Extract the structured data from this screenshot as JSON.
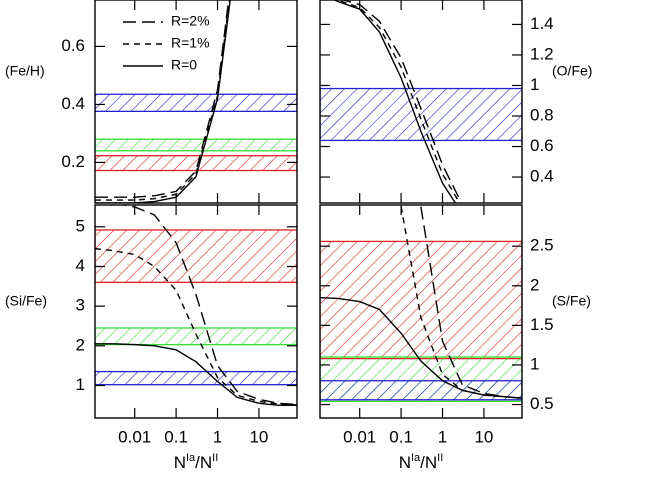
{
  "chart_data": [
    {
      "type": "line",
      "ylabel": "(Fe/H)",
      "yaxis_side": "left",
      "log_x": true,
      "xlim": [
        0.0011,
        83
      ],
      "xticks": [
        0.01,
        0.1,
        1,
        10
      ],
      "ylim": [
        0.06,
        0.76
      ],
      "yticks": [
        0.2,
        0.4,
        0.6
      ],
      "x": [
        0.0011,
        0.003,
        0.01,
        0.03,
        0.1,
        0.3,
        1,
        3,
        10,
        30,
        83
      ],
      "legend": "upper left",
      "series": [
        {
          "name": "R=2%",
          "dash": "long",
          "color": "#000000",
          "values": [
            0.08,
            0.08,
            0.08,
            0.085,
            0.1,
            0.17,
            0.45,
            1.0,
            null,
            null,
            null
          ]
        },
        {
          "name": "R=1%",
          "dash": "short",
          "color": "#000000",
          "values": [
            0.07,
            0.07,
            0.07,
            0.075,
            0.09,
            0.16,
            0.43,
            0.98,
            null,
            null,
            null
          ]
        },
        {
          "name": "R=0",
          "dash": "solid",
          "color": "#000000",
          "values": [
            0.06,
            0.06,
            0.06,
            0.065,
            0.08,
            0.15,
            0.42,
            0.95,
            null,
            null,
            null
          ]
        }
      ],
      "bands": [
        {
          "color": "#2222cc",
          "range": [
            0.376,
            0.435
          ]
        },
        {
          "color": "#33dd33",
          "range": [
            0.24,
            0.28
          ]
        },
        {
          "color": "#dd2222",
          "range": [
            0.172,
            0.223
          ]
        }
      ]
    },
    {
      "type": "line",
      "ylabel": "(O/Fe)",
      "yaxis_side": "right",
      "log_x": true,
      "xlim": [
        0.0011,
        83
      ],
      "xticks": [
        0.01,
        0.1,
        1,
        10
      ],
      "ylim": [
        0.23,
        1.56
      ],
      "yticks": [
        0.4,
        0.6,
        0.8,
        1,
        1.2,
        1.4
      ],
      "x": [
        0.0011,
        0.003,
        0.01,
        0.03,
        0.1,
        0.3,
        1,
        3,
        10,
        30,
        83
      ],
      "series": [
        {
          "dash": "long",
          "color": "#000000",
          "values": [
            1.6,
            1.57,
            1.53,
            1.42,
            1.18,
            0.85,
            0.48,
            0.22,
            null,
            null,
            null
          ]
        },
        {
          "dash": "short",
          "color": "#000000",
          "values": [
            1.6,
            1.56,
            1.51,
            1.38,
            1.12,
            0.78,
            0.42,
            0.2,
            null,
            null,
            null
          ]
        },
        {
          "dash": "solid",
          "color": "#000000",
          "values": [
            1.6,
            1.55,
            1.5,
            1.35,
            1.05,
            0.7,
            0.36,
            0.16,
            null,
            null,
            null
          ]
        }
      ],
      "bands": [
        {
          "color": "#2222cc",
          "range": [
            0.64,
            0.98
          ]
        }
      ]
    },
    {
      "type": "line",
      "ylabel": "(Si/Fe)",
      "yaxis_side": "left",
      "log_x": true,
      "xlim": [
        0.0011,
        83
      ],
      "xticks": [
        0.01,
        0.1,
        1,
        10
      ],
      "ylim": [
        0.18,
        5.55
      ],
      "yticks": [
        1,
        2,
        3,
        4,
        5
      ],
      "xlabel": [
        "N",
        "Ia",
        "/N",
        "II"
      ],
      "x": [
        0.0011,
        0.003,
        0.01,
        0.03,
        0.1,
        0.3,
        1,
        3,
        10,
        30,
        83
      ],
      "series": [
        {
          "dash": "long",
          "color": "#000000",
          "values": [
            5.7,
            5.6,
            5.5,
            5.3,
            4.6,
            3.3,
            1.5,
            0.85,
            0.65,
            0.55,
            0.52
          ]
        },
        {
          "dash": "short",
          "color": "#000000",
          "values": [
            4.45,
            4.4,
            4.3,
            4.0,
            3.4,
            2.3,
            1.2,
            0.75,
            0.6,
            0.53,
            0.51
          ]
        },
        {
          "dash": "solid",
          "color": "#000000",
          "values": [
            2.05,
            2.05,
            2.03,
            2.0,
            1.9,
            1.6,
            1.1,
            0.7,
            0.55,
            0.5,
            0.5
          ]
        }
      ],
      "bands": [
        {
          "color": "#dd2222",
          "range": [
            3.6,
            4.92
          ]
        },
        {
          "color": "#33dd33",
          "range": [
            2.03,
            2.45
          ]
        },
        {
          "color": "#2222cc",
          "range": [
            1.02,
            1.35
          ]
        }
      ]
    },
    {
      "type": "line",
      "ylabel": "(S/Fe)",
      "yaxis_side": "right",
      "log_x": true,
      "xlim": [
        0.0011,
        83
      ],
      "xticks": [
        0.01,
        0.1,
        1,
        10
      ],
      "ylim": [
        0.33,
        3.02
      ],
      "yticks": [
        0.5,
        1,
        1.5,
        2,
        2.5
      ],
      "xlabel": [
        "N",
        "Ia",
        "/N",
        "II"
      ],
      "x": [
        0.0011,
        0.003,
        0.01,
        0.03,
        0.1,
        0.3,
        1,
        3,
        10,
        30,
        83
      ],
      "series": [
        {
          "dash": "long",
          "color": "#000000",
          "values": [
            null,
            null,
            null,
            null,
            null,
            3.0,
            1.3,
            0.75,
            0.64,
            0.6,
            0.58
          ]
        },
        {
          "dash": "short",
          "color": "#000000",
          "values": [
            null,
            null,
            null,
            null,
            3.0,
            1.6,
            0.88,
            0.68,
            0.62,
            0.6,
            0.58
          ]
        },
        {
          "dash": "solid",
          "color": "#000000",
          "values": [
            1.85,
            1.84,
            1.8,
            1.7,
            1.4,
            1.05,
            0.8,
            0.68,
            0.62,
            0.6,
            0.58
          ]
        }
      ],
      "bands": [
        {
          "color": "#dd2222",
          "range": [
            1.08,
            2.56
          ]
        },
        {
          "color": "#33dd33",
          "range": [
            0.54,
            1.1
          ]
        },
        {
          "color": "#2222cc",
          "range": [
            0.56,
            0.8
          ]
        }
      ]
    }
  ]
}
